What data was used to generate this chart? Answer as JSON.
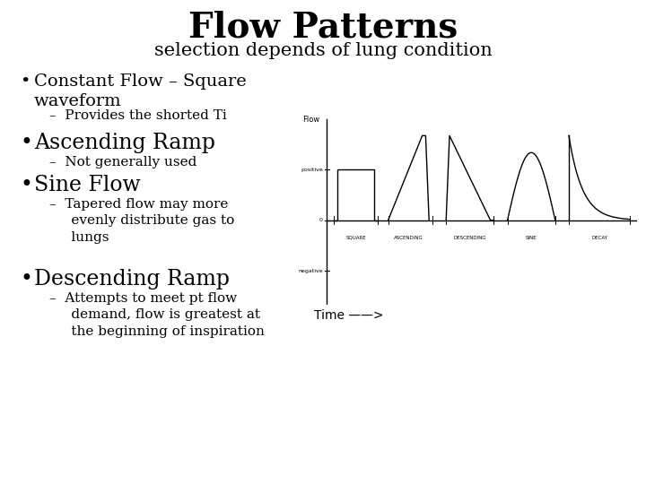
{
  "title": "Flow Patterns",
  "subtitle": "selection depends of lung condition",
  "background_color": "#ffffff",
  "text_color": "#000000",
  "title_fontsize": 28,
  "title_fontweight": "bold",
  "subtitle_fontsize": 15,
  "bullet_main_fontsize": 17,
  "bullet_sub_fontsize": 11,
  "diagram": {
    "flow_label": "Flow",
    "time_label": "Time ——>",
    "waveform_labels": [
      "SQUARE",
      "ASCENDING",
      "DESCENDING",
      "SINE",
      "DECAY"
    ],
    "line_color": "#000000",
    "line_width": 1.0
  },
  "bullets": [
    {
      "main": "Constant Flow – Square\nwaveform",
      "sub": "–  Provides the shorted Ti",
      "main_large": false
    },
    {
      "main": "Ascending Ramp",
      "sub": "–  Not generally used",
      "main_large": true
    },
    {
      "main": "Sine Flow",
      "sub": "–  Tapered flow may more\n     evenly distribute gas to\n     lungs",
      "main_large": true
    },
    {
      "main": "Descending Ramp",
      "sub": "–  Attempts to meet pt flow\n     demand, flow is greatest at\n     the beginning of inspiration",
      "main_large": true
    }
  ]
}
